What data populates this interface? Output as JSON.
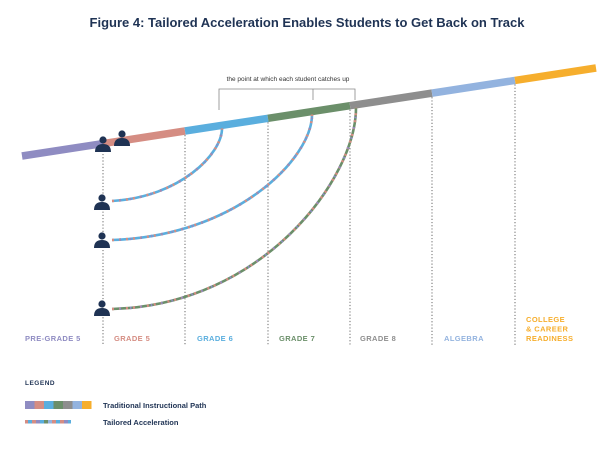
{
  "title": "Figure 4: Tailored Acceleration Enables Students to Get Back on Track",
  "annotation": "the point at which each student catches up",
  "colors": {
    "pre_grade_5": "#8f8cc2",
    "grade_5": "#d58d83",
    "grade_6": "#5aaede",
    "grade_7": "#6b8f6a",
    "grade_8": "#8e8e8e",
    "algebra": "#93b3df",
    "college": "#f6ae2d",
    "navy": "#1f3354"
  },
  "grades": [
    {
      "id": "pre-grade-5",
      "lines": [
        "PRE-GRADE 5"
      ],
      "color": "#8f8cc2"
    },
    {
      "id": "grade-5",
      "lines": [
        "GRADE 5"
      ],
      "color": "#d58d83"
    },
    {
      "id": "grade-6",
      "lines": [
        "GRADE 6"
      ],
      "color": "#5aaede"
    },
    {
      "id": "grade-7",
      "lines": [
        "GRADE 7"
      ],
      "color": "#6b8f6a"
    },
    {
      "id": "grade-8",
      "lines": [
        "GRADE 8"
      ],
      "color": "#8e8e8e"
    },
    {
      "id": "algebra",
      "lines": [
        "ALGEBRA"
      ],
      "color": "#93b3df"
    },
    {
      "id": "college",
      "lines": [
        "COLLEGE",
        "& CAREER",
        "READINESS"
      ],
      "color": "#f6ae2d"
    }
  ],
  "legend": {
    "title": "LEGEND",
    "traditional": "Traditional Instructional Path",
    "tailored": "Tailored Acceleration"
  }
}
